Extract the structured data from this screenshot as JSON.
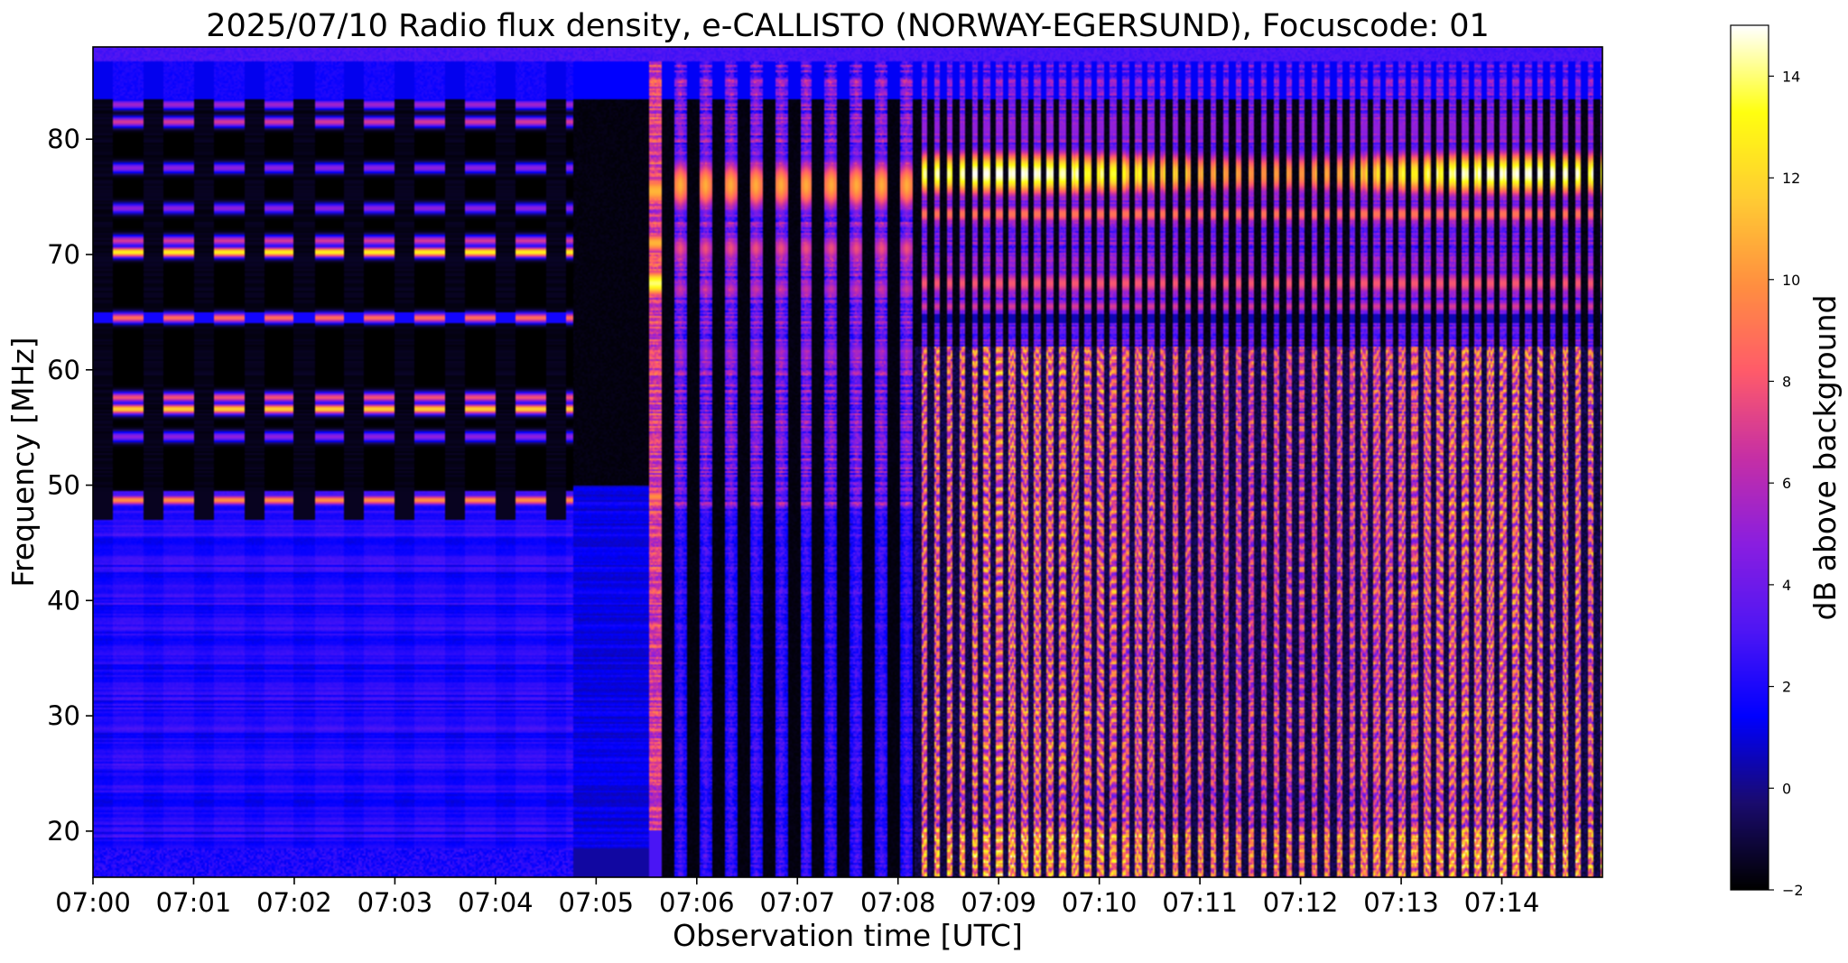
{
  "chart_data": {
    "type": "heatmap",
    "title": "2025/07/10  Radio flux density, e-CALLISTO (NORWAY-EGERSUND), Focuscode: 01",
    "xlabel": "Observation time [UTC]",
    "ylabel": "Frequency [MHz]",
    "colorbar_label": "dB above background",
    "x_ticks": [
      "07:00",
      "07:01",
      "07:02",
      "07:03",
      "07:04",
      "07:05",
      "07:06",
      "07:07",
      "07:08",
      "07:09",
      "07:10",
      "07:11",
      "07:12",
      "07:13",
      "07:14"
    ],
    "x_range": [
      "07:00",
      "07:15"
    ],
    "y_ticks": [
      20,
      30,
      40,
      50,
      60,
      70,
      80
    ],
    "y_range": [
      16,
      88
    ],
    "colorbar_ticks": [
      -2,
      0,
      2,
      4,
      6,
      8,
      10,
      12,
      14
    ],
    "color_range": [
      -2,
      15
    ],
    "colormap": "gnuplot2",
    "colormap_stops": [
      "#000000",
      "#1a0b6e",
      "#0000ff",
      "#4f16f4",
      "#8a1ee0",
      "#c62fa5",
      "#ff5b6a",
      "#ff8f40",
      "#ffcc33",
      "#ffff10",
      "#ffffff"
    ],
    "regions": [
      {
        "time_range": [
          "07:00:00",
          "07:04:46"
        ],
        "description_type": "periodic",
        "period_s": 30,
        "band_levels_db": [
          {
            "freq": 83,
            "level": 5.5
          },
          {
            "freq": 81.5,
            "level": 7
          },
          {
            "freq": 77.5,
            "level": 5
          },
          {
            "freq": 74,
            "level": 5
          },
          {
            "freq": 71.2,
            "level": 7
          },
          {
            "freq": 70.2,
            "level": 13
          },
          {
            "freq": 64.5,
            "level": 9
          },
          {
            "freq": 57.6,
            "level": 8
          },
          {
            "freq": 56.6,
            "level": 12
          },
          {
            "freq": 54.2,
            "level": 5
          },
          {
            "freq": 48.7,
            "level": 10
          }
        ]
      },
      {
        "time_range": [
          "07:04:46",
          "07:05:32"
        ],
        "description_type": "quiet"
      },
      {
        "time_range": [
          "07:05:32",
          "07:05:39"
        ],
        "description_type": "burst",
        "peak_freq": 67.5,
        "peak_db": 14
      },
      {
        "time_range": [
          "07:05:39",
          "07:08:10"
        ],
        "description_type": "periodic",
        "period_s": 15
      },
      {
        "time_range": [
          "07:08:10",
          "07:15:00"
        ],
        "description_type": "periodic",
        "period_s": 7.5,
        "peak_freq": 77,
        "peak_db": 15
      }
    ]
  }
}
